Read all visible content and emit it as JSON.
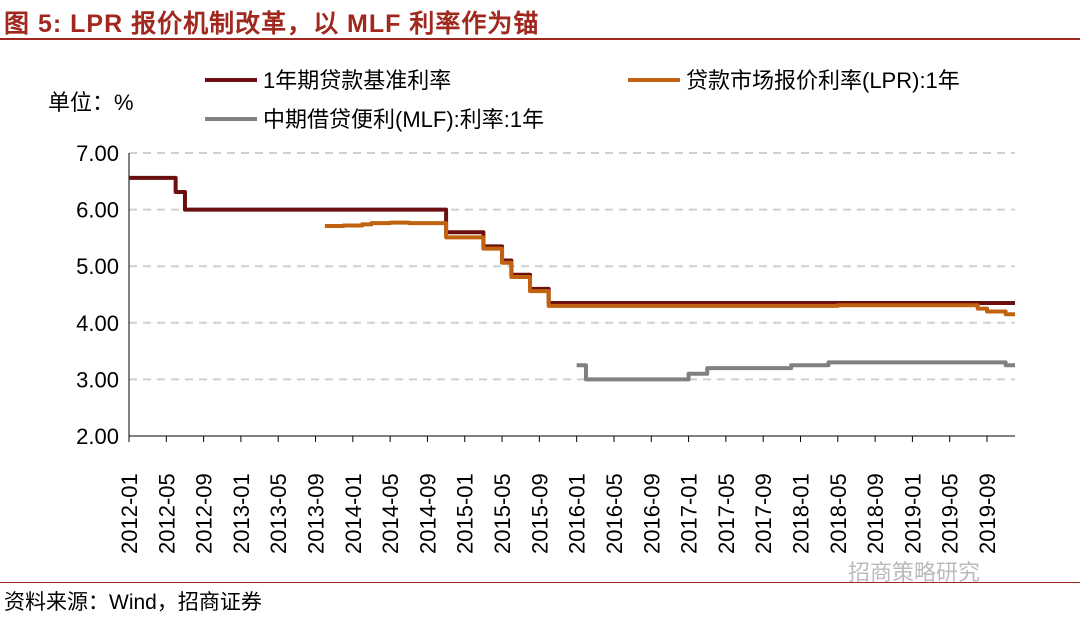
{
  "title": "图 5:  LPR 报价机制改革，以 MLF 利率作为锚",
  "source": "资料来源：Wind，招商证券",
  "watermark": "招商策略研究",
  "chart_data": {
    "type": "line",
    "unit_label": "单位：%",
    "ylim": [
      2,
      7
    ],
    "yticks": [
      "7.00",
      "6.00",
      "5.00",
      "4.00",
      "3.00",
      "2.00"
    ],
    "ytick_values": [
      7,
      6,
      5,
      4,
      3,
      2
    ],
    "xlim": [
      "2012-01",
      "2019-12"
    ],
    "xticks": [
      "2012-01",
      "2012-05",
      "2012-09",
      "2013-01",
      "2013-05",
      "2013-09",
      "2014-01",
      "2014-05",
      "2014-09",
      "2015-01",
      "2015-05",
      "2015-09",
      "2016-01",
      "2016-05",
      "2016-09",
      "2017-01",
      "2017-05",
      "2017-09",
      "2018-01",
      "2018-05",
      "2018-09",
      "2019-01",
      "2019-05",
      "2019-09"
    ],
    "grid": "horizontal-dashed",
    "legend_placement": "top",
    "series": [
      {
        "name": "1年期贷款基准利率",
        "color": "#6b0e0e",
        "points": [
          [
            "2012-01",
            6.56
          ],
          [
            "2012-06",
            6.31
          ],
          [
            "2012-07",
            6.0
          ],
          [
            "2014-11",
            5.6
          ],
          [
            "2015-03",
            5.35
          ],
          [
            "2015-05",
            5.1
          ],
          [
            "2015-06",
            4.85
          ],
          [
            "2015-08",
            4.6
          ],
          [
            "2015-10",
            4.35
          ],
          [
            "2019-12",
            4.35
          ]
        ]
      },
      {
        "name": "贷款市场报价利率(LPR):1年",
        "color": "#c0620f",
        "points": [
          [
            "2013-10",
            5.71
          ],
          [
            "2013-12",
            5.72
          ],
          [
            "2014-02",
            5.74
          ],
          [
            "2014-03",
            5.76
          ],
          [
            "2014-05",
            5.77
          ],
          [
            "2014-07",
            5.76
          ],
          [
            "2014-11",
            5.51
          ],
          [
            "2015-03",
            5.31
          ],
          [
            "2015-05",
            5.06
          ],
          [
            "2015-06",
            4.81
          ],
          [
            "2015-08",
            4.56
          ],
          [
            "2015-10",
            4.3
          ],
          [
            "2018-05",
            4.31
          ],
          [
            "2019-08",
            4.25
          ],
          [
            "2019-09",
            4.2
          ],
          [
            "2019-11",
            4.15
          ],
          [
            "2019-12",
            4.15
          ]
        ]
      },
      {
        "name": "中期借贷便利(MLF):利率:1年",
        "color": "#808080",
        "points": [
          [
            "2016-01",
            3.25
          ],
          [
            "2016-02",
            3.0
          ],
          [
            "2017-01",
            3.1
          ],
          [
            "2017-03",
            3.2
          ],
          [
            "2017-12",
            3.25
          ],
          [
            "2018-04",
            3.3
          ],
          [
            "2019-11",
            3.25
          ],
          [
            "2019-12",
            3.25
          ]
        ]
      }
    ]
  }
}
